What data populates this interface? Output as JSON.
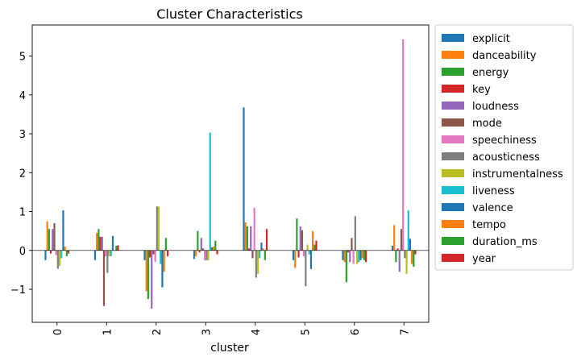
{
  "chart_data": {
    "type": "bar",
    "title": "Cluster Characteristics",
    "xlabel": "cluster",
    "ylabel": "",
    "ylim": [
      -1.85,
      5.8
    ],
    "yticks": [
      -1,
      0,
      1,
      2,
      3,
      4,
      5
    ],
    "grid": false,
    "legend_position": "outside-right",
    "categories": [
      "0",
      "1",
      "2",
      "3",
      "4",
      "5",
      "6",
      "7"
    ],
    "series": [
      {
        "name": "explicit",
        "color": "#1f77b4",
        "values": [
          -0.25,
          -0.25,
          -0.25,
          -0.22,
          3.68,
          -0.25,
          -0.25,
          0.12
        ]
      },
      {
        "name": "danceability",
        "color": "#ff7f0e",
        "values": [
          0.75,
          0.45,
          -1.05,
          -0.15,
          0.72,
          -0.45,
          -0.3,
          0.65
        ]
      },
      {
        "name": "energy",
        "color": "#2ca02c",
        "values": [
          0.55,
          0.55,
          -1.25,
          0.5,
          0.62,
          0.82,
          -0.82,
          -0.3
        ]
      },
      {
        "name": "key",
        "color": "#d62728",
        "values": [
          -0.08,
          0.35,
          -0.18,
          -0.05,
          0.05,
          -0.18,
          -0.05,
          0.05
        ]
      },
      {
        "name": "loudness",
        "color": "#9467bd",
        "values": [
          0.55,
          0.35,
          -1.5,
          0.32,
          0.62,
          0.62,
          -0.3,
          -0.55
        ]
      },
      {
        "name": "mode",
        "color": "#8c564b",
        "values": [
          0.7,
          -1.43,
          -0.1,
          0.05,
          -0.2,
          0.52,
          0.32,
          0.55
        ]
      },
      {
        "name": "speechiness",
        "color": "#e377c2",
        "values": [
          -0.12,
          -0.15,
          -0.3,
          -0.25,
          1.1,
          -0.15,
          -0.35,
          5.43
        ]
      },
      {
        "name": "acousticness",
        "color": "#7f7f7f",
        "values": [
          -0.47,
          -0.58,
          1.13,
          -0.25,
          -0.7,
          -0.92,
          0.88,
          -0.2
        ]
      },
      {
        "name": "instrumentalness",
        "color": "#bcbd22",
        "values": [
          -0.4,
          -0.15,
          1.13,
          -0.25,
          -0.6,
          0.15,
          -0.35,
          -0.6
        ]
      },
      {
        "name": "liveness",
        "color": "#17becf",
        "values": [
          -0.2,
          -0.15,
          -0.35,
          3.03,
          -0.2,
          -0.1,
          -0.3,
          1.03
        ]
      },
      {
        "name": "valence",
        "color": "#1f77b4",
        "values": [
          1.03,
          0.37,
          -0.95,
          0.08,
          0.2,
          -0.48,
          -0.25,
          0.3
        ]
      },
      {
        "name": "tempo",
        "color": "#ff7f0e",
        "values": [
          0.1,
          0.0,
          -0.55,
          0.1,
          0.05,
          0.5,
          -0.2,
          -0.35
        ]
      },
      {
        "name": "duration_ms",
        "color": "#2ca02c",
        "values": [
          -0.15,
          0.12,
          0.32,
          0.25,
          -0.25,
          0.15,
          -0.25,
          -0.42
        ]
      },
      {
        "name": "year",
        "color": "#d62728",
        "values": [
          -0.08,
          0.13,
          -0.15,
          -0.1,
          0.55,
          0.25,
          -0.3,
          -0.1
        ]
      }
    ]
  }
}
